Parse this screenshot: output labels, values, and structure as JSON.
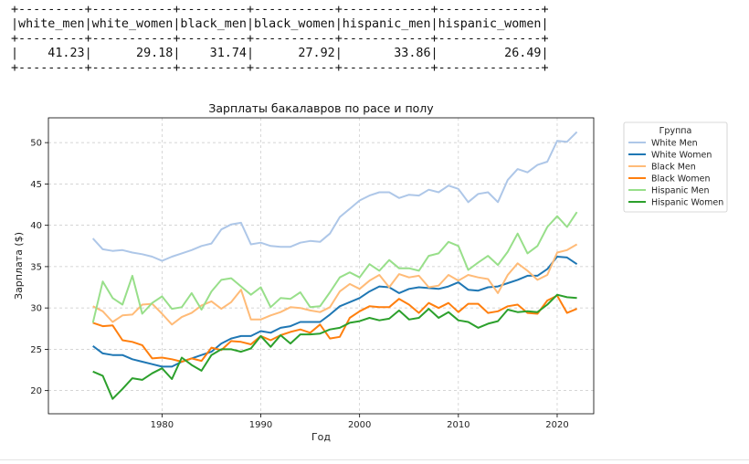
{
  "table": {
    "columns": [
      "white_men",
      "white_women",
      "black_men",
      "black_women",
      "hispanic_men",
      "hispanic_women"
    ],
    "values": [
      "41.23",
      "29.18",
      "31.74",
      "27.92",
      "33.86",
      "26.49"
    ]
  },
  "chart_data": {
    "type": "line",
    "title": "Зарплаты бакалавров по расе и полу",
    "xlabel": "Год",
    "ylabel": "Зарплата ($)",
    "xlim": [
      1968.5,
      2023.7
    ],
    "ylim": [
      17.2,
      53.0
    ],
    "xticks": [
      1980,
      1990,
      2000,
      2010,
      2020
    ],
    "yticks": [
      20,
      25,
      30,
      35,
      40,
      45,
      50
    ],
    "grid": true,
    "legend": {
      "title": "Группа",
      "placement": "outside-right"
    },
    "x": [
      1973,
      1974,
      1975,
      1976,
      1977,
      1978,
      1979,
      1980,
      1981,
      1982,
      1983,
      1984,
      1985,
      1986,
      1987,
      1988,
      1989,
      1990,
      1991,
      1992,
      1993,
      1994,
      1995,
      1996,
      1997,
      1998,
      1999,
      2000,
      2001,
      2002,
      2003,
      2004,
      2005,
      2006,
      2007,
      2008,
      2009,
      2010,
      2011,
      2012,
      2013,
      2014,
      2015,
      2016,
      2017,
      2018,
      2019,
      2020,
      2021,
      2022
    ],
    "series": [
      {
        "name": "White Men",
        "color": "#aec7e8",
        "values": [
          38.4,
          37.1,
          36.9,
          37.0,
          36.7,
          36.5,
          36.2,
          35.7,
          36.2,
          36.6,
          37.0,
          37.5,
          37.8,
          39.5,
          40.1,
          40.3,
          37.7,
          37.9,
          37.5,
          37.4,
          37.4,
          37.9,
          38.1,
          38.0,
          39.0,
          41.0,
          42.0,
          43.0,
          43.6,
          44.0,
          44.0,
          43.3,
          43.7,
          43.6,
          44.3,
          44.0,
          44.8,
          44.4,
          42.8,
          43.8,
          44.0,
          42.8,
          45.5,
          46.8,
          46.4,
          47.3,
          47.7,
          50.2,
          50.1,
          51.3
        ]
      },
      {
        "name": "White Women",
        "color": "#1f77b4",
        "values": [
          25.4,
          24.5,
          24.3,
          24.3,
          23.8,
          23.5,
          23.2,
          22.9,
          22.9,
          23.5,
          23.9,
          24.3,
          24.7,
          25.7,
          26.3,
          26.6,
          26.6,
          27.2,
          27.0,
          27.6,
          27.8,
          28.3,
          28.3,
          28.3,
          29.2,
          30.2,
          30.7,
          31.2,
          32.0,
          32.6,
          32.5,
          31.8,
          32.3,
          32.5,
          32.4,
          32.3,
          32.6,
          33.1,
          32.2,
          32.1,
          32.5,
          32.6,
          33.0,
          33.4,
          33.9,
          33.9,
          34.7,
          36.2,
          36.1,
          35.3
        ]
      },
      {
        "name": "Black Men",
        "color": "#ffbb78",
        "values": [
          30.2,
          29.6,
          28.3,
          29.1,
          29.2,
          30.4,
          30.5,
          29.3,
          28.0,
          28.9,
          29.4,
          30.3,
          30.8,
          29.9,
          30.7,
          32.2,
          28.6,
          28.6,
          29.1,
          29.5,
          30.1,
          30.0,
          29.7,
          29.5,
          30.1,
          32.0,
          32.9,
          32.3,
          33.3,
          34.0,
          32.5,
          34.1,
          33.7,
          33.9,
          32.5,
          32.7,
          34.0,
          33.3,
          34.0,
          33.7,
          33.5,
          31.8,
          34.0,
          35.4,
          34.5,
          33.4,
          34.0,
          36.7,
          37.0,
          37.7
        ]
      },
      {
        "name": "Black Women",
        "color": "#ff7f0e",
        "values": [
          28.2,
          27.8,
          27.9,
          26.1,
          25.9,
          25.5,
          23.9,
          24.0,
          23.8,
          23.5,
          23.9,
          23.6,
          25.2,
          24.9,
          26.0,
          25.9,
          25.6,
          26.6,
          26.1,
          26.7,
          27.1,
          27.4,
          27.0,
          28.0,
          26.3,
          26.5,
          28.8,
          29.6,
          30.2,
          30.1,
          30.1,
          31.1,
          30.4,
          29.4,
          30.6,
          30.0,
          30.6,
          29.5,
          30.5,
          30.5,
          29.4,
          29.6,
          30.2,
          30.4,
          29.4,
          29.3,
          30.9,
          31.5,
          29.4,
          29.9
        ]
      },
      {
        "name": "Hispanic Men",
        "color": "#98df8a",
        "values": [
          28.2,
          33.2,
          31.2,
          30.4,
          33.9,
          29.3,
          30.6,
          31.4,
          29.9,
          30.1,
          31.8,
          29.8,
          32.0,
          33.4,
          33.6,
          32.6,
          31.6,
          32.5,
          30.1,
          31.2,
          31.1,
          31.9,
          30.1,
          30.2,
          31.9,
          33.7,
          34.3,
          33.7,
          35.3,
          34.5,
          35.8,
          34.8,
          34.8,
          34.5,
          36.3,
          36.6,
          38.0,
          37.5,
          34.6,
          35.5,
          36.3,
          35.2,
          36.8,
          39.0,
          36.6,
          37.5,
          39.8,
          41.1,
          39.8,
          41.6
        ]
      },
      {
        "name": "Hispanic Women",
        "color": "#2ca02c",
        "values": [
          22.3,
          21.8,
          19.0,
          20.2,
          21.5,
          21.3,
          22.1,
          22.7,
          21.4,
          24.0,
          23.1,
          22.4,
          24.3,
          25.0,
          25.0,
          24.7,
          25.1,
          26.6,
          25.3,
          26.7,
          25.7,
          26.8,
          26.8,
          26.9,
          27.4,
          27.6,
          28.2,
          28.4,
          28.8,
          28.5,
          28.7,
          29.7,
          28.6,
          28.8,
          29.9,
          28.8,
          29.5,
          28.5,
          28.3,
          27.6,
          28.1,
          28.4,
          29.8,
          29.5,
          29.6,
          29.5,
          30.4,
          31.6,
          31.3,
          31.2
        ]
      }
    ]
  }
}
